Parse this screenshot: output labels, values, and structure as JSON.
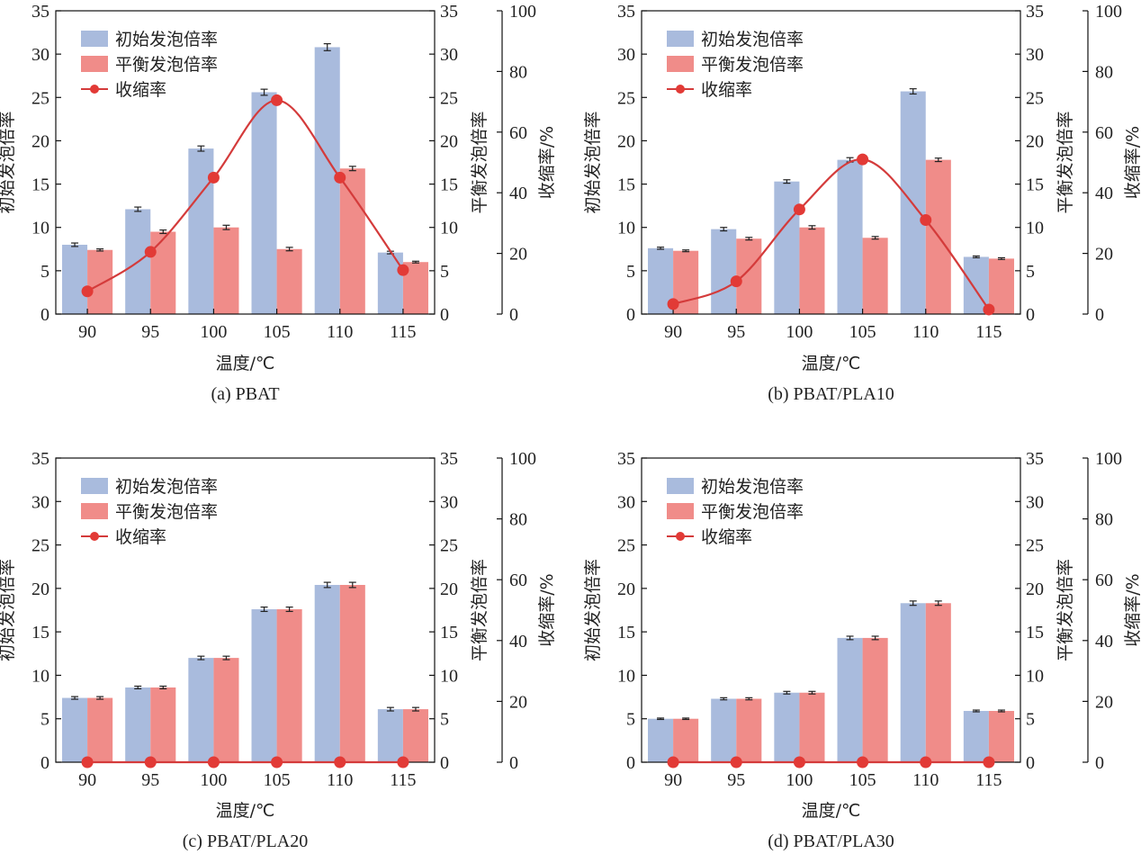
{
  "figure": {
    "legend": {
      "initial": "初始发泡倍率",
      "equilibrium": "平衡发泡倍率",
      "shrinkage": "收缩率"
    },
    "colors": {
      "initial": "#a9bbdd",
      "equilibrium": "#f08c89",
      "shrinkage_line": "#d43b3b",
      "shrinkage_marker": "#e23a36",
      "axis": "#111111"
    }
  },
  "chart_data": [
    {
      "type": "bar",
      "title": "(a) PBAT",
      "xlabel": "温度/℃",
      "ylabel_left": "初始发泡倍率",
      "ylabel_right": "平衡发泡倍率",
      "ylabel_right2": "收缩率/%",
      "categories": [
        "90",
        "95",
        "100",
        "105",
        "110",
        "115"
      ],
      "ylim_left": [
        0,
        35
      ],
      "ylim_right": [
        0,
        35
      ],
      "ylim_right2": [
        0,
        100
      ],
      "yticks_left": [
        "0",
        "5",
        "10",
        "15",
        "20",
        "25",
        "30",
        "35"
      ],
      "yticks_right2": [
        "0",
        "20",
        "40",
        "60",
        "80",
        "100"
      ],
      "legend_position": "top-left",
      "series": [
        {
          "name": "初始发泡倍率",
          "kind": "bar",
          "axis": "left",
          "values": [
            8.0,
            12.1,
            19.1,
            25.6,
            30.8,
            7.1
          ],
          "errors": [
            0.2,
            0.25,
            0.3,
            0.35,
            0.4,
            0.15
          ]
        },
        {
          "name": "平衡发泡倍率",
          "kind": "bar",
          "axis": "right",
          "values": [
            7.4,
            9.5,
            10.0,
            7.5,
            16.8,
            6.0
          ],
          "errors": [
            0.12,
            0.2,
            0.25,
            0.2,
            0.25,
            0.1
          ]
        },
        {
          "name": "收缩率",
          "kind": "line",
          "axis": "right2",
          "values": [
            7.5,
            20.5,
            45.0,
            70.5,
            45.0,
            14.5
          ]
        }
      ]
    },
    {
      "type": "bar",
      "title": "(b) PBAT/PLA10",
      "xlabel": "温度/℃",
      "ylabel_left": "初始发泡倍率",
      "ylabel_right": "平衡发泡倍率",
      "ylabel_right2": "收缩率/%",
      "categories": [
        "90",
        "95",
        "100",
        "105",
        "110",
        "115"
      ],
      "ylim_left": [
        0,
        35
      ],
      "ylim_right": [
        0,
        35
      ],
      "ylim_right2": [
        0,
        100
      ],
      "yticks_left": [
        "0",
        "5",
        "10",
        "15",
        "20",
        "25",
        "30",
        "35"
      ],
      "yticks_right2": [
        "0",
        "20",
        "40",
        "60",
        "80",
        "100"
      ],
      "legend_position": "top-left",
      "series": [
        {
          "name": "初始发泡倍率",
          "kind": "bar",
          "axis": "left",
          "values": [
            7.6,
            9.8,
            15.3,
            17.8,
            25.7,
            6.6
          ],
          "errors": [
            0.12,
            0.2,
            0.2,
            0.25,
            0.3,
            0.1
          ]
        },
        {
          "name": "平衡发泡倍率",
          "kind": "bar",
          "axis": "right",
          "values": [
            7.3,
            8.7,
            10.0,
            8.8,
            17.8,
            6.4
          ],
          "errors": [
            0.1,
            0.15,
            0.2,
            0.15,
            0.2,
            0.1
          ]
        },
        {
          "name": "收缩率",
          "kind": "line",
          "axis": "right2",
          "values": [
            3.3,
            10.8,
            34.5,
            51.0,
            31.0,
            1.5
          ]
        }
      ]
    },
    {
      "type": "bar",
      "title": "(c) PBAT/PLA20",
      "xlabel": "温度/℃",
      "ylabel_left": "初始发泡倍率",
      "ylabel_right": "平衡发泡倍率",
      "ylabel_right2": "收缩率/%",
      "categories": [
        "90",
        "95",
        "100",
        "105",
        "110",
        "115"
      ],
      "ylim_left": [
        0,
        35
      ],
      "ylim_right": [
        0,
        35
      ],
      "ylim_right2": [
        0,
        100
      ],
      "yticks_left": [
        "0",
        "5",
        "10",
        "15",
        "20",
        "25",
        "30",
        "35"
      ],
      "yticks_right2": [
        "0",
        "20",
        "40",
        "60",
        "80",
        "100"
      ],
      "legend_position": "top-left",
      "series": [
        {
          "name": "初始发泡倍率",
          "kind": "bar",
          "axis": "left",
          "values": [
            7.4,
            8.6,
            12.0,
            17.6,
            20.4,
            6.1
          ],
          "errors": [
            0.15,
            0.15,
            0.2,
            0.25,
            0.3,
            0.2
          ]
        },
        {
          "name": "平衡发泡倍率",
          "kind": "bar",
          "axis": "right",
          "values": [
            7.4,
            8.6,
            12.0,
            17.6,
            20.4,
            6.1
          ],
          "errors": [
            0.15,
            0.15,
            0.2,
            0.25,
            0.3,
            0.2
          ]
        },
        {
          "name": "收缩率",
          "kind": "line",
          "axis": "right2",
          "values": [
            0,
            0,
            0,
            0,
            0,
            0
          ]
        }
      ]
    },
    {
      "type": "bar",
      "title": "(d) PBAT/PLA30",
      "xlabel": "温度/℃",
      "ylabel_left": "初始发泡倍率",
      "ylabel_right": "平衡发泡倍率",
      "ylabel_right2": "收缩率/%",
      "categories": [
        "90",
        "95",
        "100",
        "105",
        "110",
        "115"
      ],
      "ylim_left": [
        0,
        35
      ],
      "ylim_right": [
        0,
        35
      ],
      "ylim_right2": [
        0,
        100
      ],
      "yticks_left": [
        "0",
        "5",
        "10",
        "15",
        "20",
        "25",
        "30",
        "35"
      ],
      "yticks_right2": [
        "0",
        "20",
        "40",
        "60",
        "80",
        "100"
      ],
      "legend_position": "top-left",
      "series": [
        {
          "name": "初始发泡倍率",
          "kind": "bar",
          "axis": "left",
          "values": [
            5.0,
            7.3,
            8.0,
            14.3,
            18.3,
            5.9
          ],
          "errors": [
            0.08,
            0.12,
            0.15,
            0.2,
            0.25,
            0.1
          ]
        },
        {
          "name": "平衡发泡倍率",
          "kind": "bar",
          "axis": "right",
          "values": [
            5.0,
            7.3,
            8.0,
            14.3,
            18.3,
            5.9
          ],
          "errors": [
            0.08,
            0.12,
            0.15,
            0.2,
            0.25,
            0.1
          ]
        },
        {
          "name": "收缩率",
          "kind": "line",
          "axis": "right2",
          "values": [
            0,
            0,
            0,
            0,
            0,
            0
          ]
        }
      ]
    }
  ]
}
